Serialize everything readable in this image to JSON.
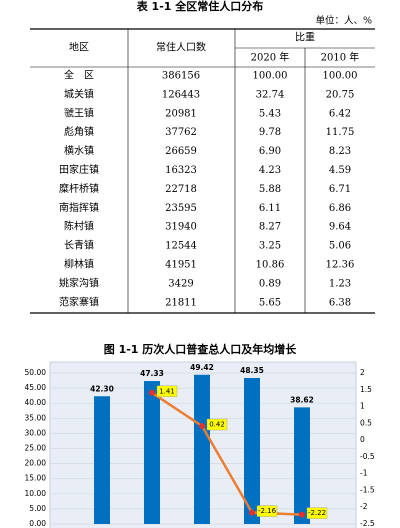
{
  "table": {
    "title": "表 1-1 全区常住人口分布",
    "unit": "单位：人、%",
    "header": {
      "region": "地区",
      "population": "常住人口数",
      "share": "比重",
      "years": [
        "2020 年",
        "2010 年"
      ]
    },
    "rows": [
      [
        "全　区",
        "386156",
        "100.00",
        "100.00"
      ],
      [
        "城关镇",
        "126443",
        "32.74",
        "20.75"
      ],
      [
        "虢王镇",
        "20981",
        "5.43",
        "6.42"
      ],
      [
        "彪角镇",
        "37762",
        "9.78",
        "11.75"
      ],
      [
        "横水镇",
        "26659",
        "6.90",
        "8.23"
      ],
      [
        "田家庄镇",
        "16323",
        "4.23",
        "4.59"
      ],
      [
        "糜杆桥镇",
        "22718",
        "5.88",
        "6.71"
      ],
      [
        "南指挥镇",
        "23595",
        "6.11",
        "6.86"
      ],
      [
        "陈村镇",
        "31940",
        "8.27",
        "9.64"
      ],
      [
        "长青镇",
        "12544",
        "3.25",
        "5.06"
      ],
      [
        "柳林镇",
        "41951",
        "10.86",
        "12.36"
      ],
      [
        "姚家沟镇",
        "3429",
        "0.89",
        "1.23"
      ],
      [
        "范家寨镇",
        "21811",
        "5.65",
        "6.38"
      ]
    ]
  },
  "chart_data": {
    "type": "bar-line",
    "title": "图 1-1 历次人口普查总人口及年均增长",
    "categories": [
      null,
      null,
      null,
      null,
      null
    ],
    "series": [
      {
        "name": null,
        "type": "bar",
        "color": "#0070c0",
        "values": [
          42.3,
          47.33,
          49.42,
          48.35,
          38.62
        ],
        "value_labels": [
          "42.30",
          "47.33",
          "49.42",
          "48.35",
          "38.62"
        ]
      },
      {
        "name": null,
        "type": "line",
        "axis": "y2",
        "color": "#ed7d31",
        "marker_color": "#e8302a",
        "label_color": "#ffff00",
        "values": [
          null,
          1.41,
          0.42,
          -2.16,
          -2.22
        ]
      }
    ],
    "ylim": [
      0,
      50
    ],
    "yticks": [
      {
        "value": 0,
        "label": "0.00"
      },
      {
        "value": 5,
        "label": "5.00"
      },
      {
        "value": 10,
        "label": "10.00"
      },
      {
        "value": 15,
        "label": "15.00"
      },
      {
        "value": 20,
        "label": "20.00"
      },
      {
        "value": 25,
        "label": "25.00"
      },
      {
        "value": 30,
        "label": "30.00"
      },
      {
        "value": 35,
        "label": "35.00"
      },
      {
        "value": 40,
        "label": "40.00"
      },
      {
        "value": 45,
        "label": "45.00"
      },
      {
        "value": 50,
        "label": "50.00"
      }
    ],
    "y2lim": [
      -2.5,
      2
    ],
    "y2ticks": [
      -2.5,
      -2,
      -1.5,
      -1,
      -0.5,
      0,
      0.5,
      1,
      1.5,
      2
    ],
    "grid": true
  }
}
